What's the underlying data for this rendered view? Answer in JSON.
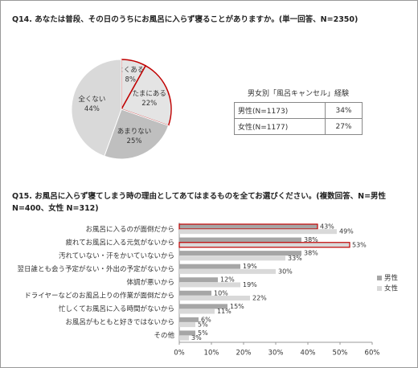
{
  "q14": {
    "title": "Q14. あなたは普段、その日のうちにお風呂に入らず寝ることがありますか。(単一回答、N=2350)",
    "chart_data": {
      "type": "pie",
      "categories": [
        "よくある",
        "たまにある",
        "あまりない",
        "全くない"
      ],
      "values": [
        8,
        22,
        25,
        44
      ],
      "value_labels": [
        "8%",
        "22%",
        "25%",
        "44%"
      ],
      "colors": [
        "#e4e4e4",
        "#e4e4e4",
        "#bfbfbf",
        "#d9d9d9"
      ]
    }
  },
  "table": {
    "caption": "男女別「風呂キャンセル」経験",
    "rows": [
      [
        "男性(N=1173)",
        "34%"
      ],
      [
        "女性(N=1177)",
        "27%"
      ]
    ]
  },
  "q15": {
    "title": "Q15. お風呂に入らず寝てしまう時の理由としてあてはまるものを全てお選びください。(複数回答、N=男性 N=400、女性 N=312)",
    "chart_data": {
      "type": "hbar",
      "categories": [
        "お風呂に入るのが面倒だから",
        "疲れてお風呂に入る元気がないから",
        "汚れていない・汗をかいていないから",
        "翌日誰とも会う予定がない・外出の予定がないから",
        "体調が悪いから",
        "ドライヤーなどのお風呂上りの作業が面倒だから",
        "忙しくてお風呂に入る時間がないから",
        "お風呂がもともと好きではないから",
        "その他"
      ],
      "series": [
        {
          "name": "男性",
          "color": "#a6a6a6",
          "values": [
            43,
            38,
            38,
            19,
            12,
            10,
            15,
            6,
            5
          ],
          "value_labels": [
            "43%",
            "38%",
            "38%",
            "19%",
            "12%",
            "10%",
            "15%",
            "6%",
            "5%"
          ]
        },
        {
          "name": "女性",
          "color": "#d9d9d9",
          "values": [
            49,
            53,
            33,
            30,
            19,
            22,
            11,
            5,
            3
          ],
          "value_labels": [
            "49%",
            "53%",
            "33%",
            "30%",
            "19%",
            "22%",
            "11%",
            "5%",
            "3%"
          ]
        }
      ],
      "xlim": [
        0,
        60
      ],
      "xticks": [
        {
          "value": 0,
          "label": "0%"
        },
        {
          "value": 10,
          "label": "10%"
        },
        {
          "value": 20,
          "label": "20%"
        },
        {
          "value": 30,
          "label": "30%"
        },
        {
          "value": 40,
          "label": "40%"
        },
        {
          "value": 50,
          "label": "50%"
        },
        {
          "value": 60,
          "label": "60%"
        }
      ],
      "legend": "right"
    }
  }
}
